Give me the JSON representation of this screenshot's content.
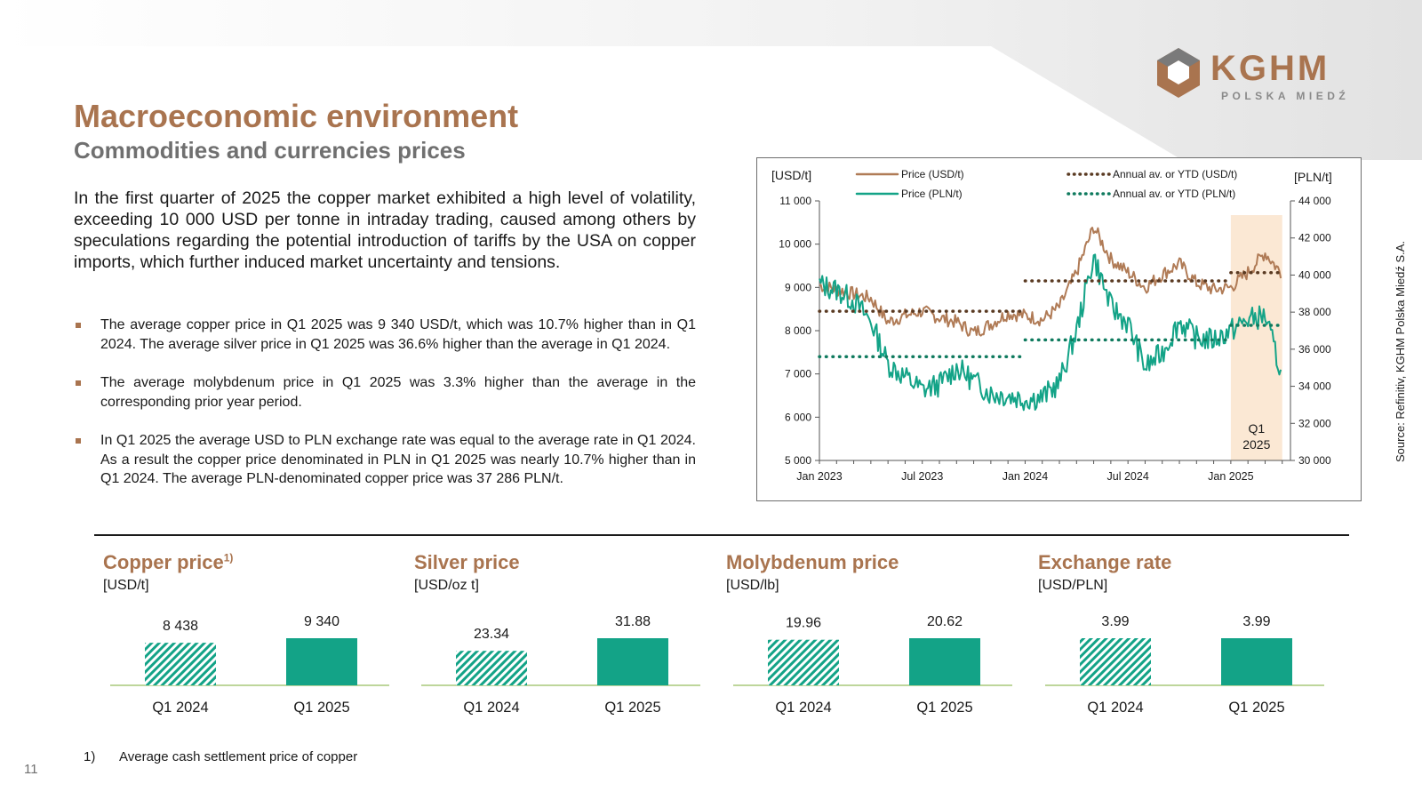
{
  "header": {
    "title": "Macroeconomic environment",
    "subtitle": "Commodities and currencies prices",
    "logo_name": "KGHM",
    "logo_sub": "POLSKA MIEDŹ"
  },
  "intro": "In the first quarter of 2025 the copper market exhibited a high level of volatility, exceeding 10 000 USD per tonne in intraday trading, caused among others by speculations regarding the potential introduction of tariffs by the USA on copper imports, which further induced market uncertainty and tensions.",
  "bullets": [
    "The average copper price in Q1 2025 was 9 340 USD/t, which was 10.7% higher than in Q1 2024. The average silver price in Q1 2025 was 36.6% higher than the average in Q1 2024.",
    "The average molybdenum price in Q1 2025 was 3.3% higher than the average in the corresponding prior year period.",
    "In Q1 2025 the average USD to PLN exchange rate was equal to the average rate in Q1 2024. As a result the copper price denominated in PLN in Q1 2025 was nearly 10.7% higher than in Q1 2024. The average PLN-denominated copper price was 37 286 PLN/t."
  ],
  "source": "Source: Refinitiv, KGHM Polska Miedź S.A.",
  "colors": {
    "usd": "#b07b56",
    "pln": "#13a387",
    "avg_usd": "#5a3a22",
    "avg_pln": "#0f7a5e",
    "highlight": "#fbe8d4",
    "brand": "#a9744f"
  },
  "chart_data": [
    {
      "type": "line",
      "left_unit": "[USD/t]",
      "right_unit": "[PLN/t]",
      "y_left": [
        5000,
        11000
      ],
      "y_right": [
        30000,
        44000
      ],
      "y_left_ticks": [
        "5 000",
        "6 000",
        "7 000",
        "8 000",
        "9 000",
        "10 000",
        "11 000"
      ],
      "y_right_ticks": [
        "30 000",
        "32 000",
        "34 000",
        "36 000",
        "38 000",
        "40 000",
        "42 000",
        "44 000"
      ],
      "x_ticks": [
        "Jan 2023",
        "Jul 2023",
        "Jan 2024",
        "Jul 2024",
        "Jan 2025"
      ],
      "highlight_label": [
        "Q1",
        "2025"
      ],
      "legend": [
        "Price (USD/t)",
        "Price (PLN/t)",
        "Annual av. or YTD (USD/t)",
        "Annual av. or YTD (PLN/t)"
      ],
      "series": [
        {
          "name": "Price (USD/t)",
          "axis": "left",
          "x": [
            "2023-01",
            "2023-02",
            "2023-03",
            "2023-04",
            "2023-05",
            "2023-06",
            "2023-07",
            "2023-08",
            "2023-09",
            "2023-10",
            "2023-11",
            "2023-12",
            "2024-01",
            "2024-02",
            "2024-03",
            "2024-04",
            "2024-05",
            "2024-06",
            "2024-07",
            "2024-08",
            "2024-09",
            "2024-10",
            "2024-11",
            "2024-12",
            "2025-01",
            "2025-02",
            "2025-03",
            "2025-04"
          ],
          "values": [
            9050,
            8950,
            8850,
            8750,
            8200,
            8350,
            8450,
            8300,
            8200,
            7950,
            8150,
            8400,
            8350,
            8250,
            8550,
            9350,
            10400,
            9650,
            9350,
            9000,
            9300,
            9550,
            9100,
            8950,
            9000,
            9350,
            9800,
            9300
          ]
        },
        {
          "name": "Price (PLN/t)",
          "axis": "right",
          "x": [
            "2023-01",
            "2023-02",
            "2023-03",
            "2023-04",
            "2023-05",
            "2023-06",
            "2023-07",
            "2023-08",
            "2023-09",
            "2023-10",
            "2023-11",
            "2023-12",
            "2024-01",
            "2024-02",
            "2024-03",
            "2024-04",
            "2024-05",
            "2024-06",
            "2024-07",
            "2024-08",
            "2024-09",
            "2024-10",
            "2024-11",
            "2024-12",
            "2025-01",
            "2025-02",
            "2025-03",
            "2025-04"
          ],
          "values": [
            39500,
            39200,
            38600,
            37500,
            35200,
            34500,
            33800,
            34100,
            35000,
            34300,
            33600,
            33500,
            33300,
            33400,
            34200,
            37000,
            41000,
            38300,
            37400,
            35000,
            35800,
            37500,
            36600,
            36500,
            37000,
            37600,
            37800,
            34500
          ]
        },
        {
          "name": "Annual av. or YTD (USD/t)",
          "axis": "left",
          "segments": [
            {
              "from": "2023-01",
              "to": "2023-12",
              "value": 8450
            },
            {
              "from": "2024-01",
              "to": "2024-12",
              "value": 9150
            },
            {
              "from": "2025-01",
              "to": "2025-03",
              "value": 9340
            }
          ]
        },
        {
          "name": "Annual av. or YTD (PLN/t)",
          "axis": "right",
          "segments": [
            {
              "from": "2023-01",
              "to": "2023-12",
              "value": 35600
            },
            {
              "from": "2024-01",
              "to": "2024-12",
              "value": 36500
            },
            {
              "from": "2025-01",
              "to": "2025-03",
              "value": 37286
            }
          ]
        }
      ]
    },
    {
      "type": "bar",
      "title": "Copper price",
      "title_sup": "1)",
      "unit": "[USD/t]",
      "categories": [
        "Q1 2024",
        "Q1 2025"
      ],
      "values": [
        8438,
        9340
      ],
      "labels": [
        "8 438",
        "9 340"
      ],
      "ylim": [
        0,
        9340
      ]
    },
    {
      "type": "bar",
      "title": "Silver price",
      "title_sup": "",
      "unit": "[USD/oz t]",
      "categories": [
        "Q1 2024",
        "Q1 2025"
      ],
      "values": [
        23.34,
        31.88
      ],
      "labels": [
        "23.34",
        "31.88"
      ],
      "ylim": [
        0,
        31.88
      ]
    },
    {
      "type": "bar",
      "title": "Molybdenum price",
      "title_sup": "",
      "unit": "[USD/lb]",
      "categories": [
        "Q1 2024",
        "Q1 2025"
      ],
      "values": [
        19.96,
        20.62
      ],
      "labels": [
        "19.96",
        "20.62"
      ],
      "ylim": [
        0,
        20.62
      ]
    },
    {
      "type": "bar",
      "title": "Exchange rate",
      "title_sup": "",
      "unit": "[USD/PLN]",
      "categories": [
        "Q1 2024",
        "Q1 2025"
      ],
      "values": [
        3.99,
        3.99
      ],
      "labels": [
        "3.99",
        "3.99"
      ],
      "ylim": [
        0,
        3.99
      ]
    }
  ],
  "footnote": {
    "num": "1)",
    "text": "Average cash settlement price of copper"
  },
  "page_number": "11"
}
